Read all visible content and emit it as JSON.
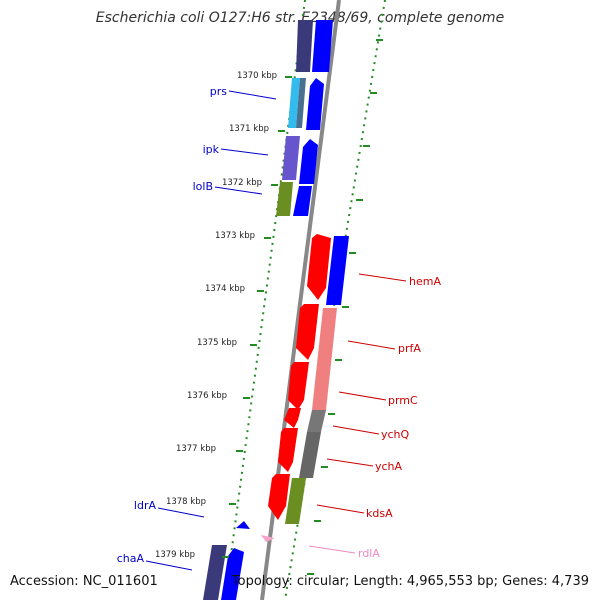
{
  "header": {
    "title": "Escherichia coli O127:H6 str. E2348/69, complete genome"
  },
  "footer": {
    "accession": "Accession: NC_011601",
    "summary": "Topology: circular; Length: 4,965,553 bp; Genes: 4,739"
  },
  "ticks": [
    {
      "label": "1370 kbp"
    },
    {
      "label": "1371 kbp"
    },
    {
      "label": "1372 kbp"
    },
    {
      "label": "1373 kbp"
    },
    {
      "label": "1374 kbp"
    },
    {
      "label": "1375 kbp"
    },
    {
      "label": "1376 kbp"
    },
    {
      "label": "1377 kbp"
    },
    {
      "label": "1378 kbp"
    },
    {
      "label": "1379 kbp"
    }
  ],
  "genes_left": [
    {
      "label": "prs",
      "color": "#0000cc"
    },
    {
      "label": "ipk",
      "color": "#0000cc"
    },
    {
      "label": "lolB",
      "color": "#0000cc"
    },
    {
      "label": "ldrA",
      "color": "#0000cc"
    },
    {
      "label": "chaA",
      "color": "#0000cc"
    }
  ],
  "genes_right": [
    {
      "label": "hemA",
      "color": "#cc0000"
    },
    {
      "label": "prfA",
      "color": "#cc0000"
    },
    {
      "label": "prmC",
      "color": "#cc0000"
    },
    {
      "label": "ychQ",
      "color": "#cc0000"
    },
    {
      "label": "ychA",
      "color": "#cc0000"
    },
    {
      "label": "kdsA",
      "color": "#cc0000"
    },
    {
      "label": "rdlA",
      "color": "#f08ac0"
    }
  ],
  "colors": {
    "cds_forward": "#0000ff",
    "cds_reverse": "#ff0000",
    "cog_dark_blue": "#3a3a7a",
    "cog_cyan": "#33bbee",
    "cog_purple": "#6655cc",
    "cog_olive": "#6b8e23",
    "cog_pink": "#f08080",
    "cog_gray": "#666666",
    "tick_green": "#228b22",
    "backbone": "#888888"
  }
}
